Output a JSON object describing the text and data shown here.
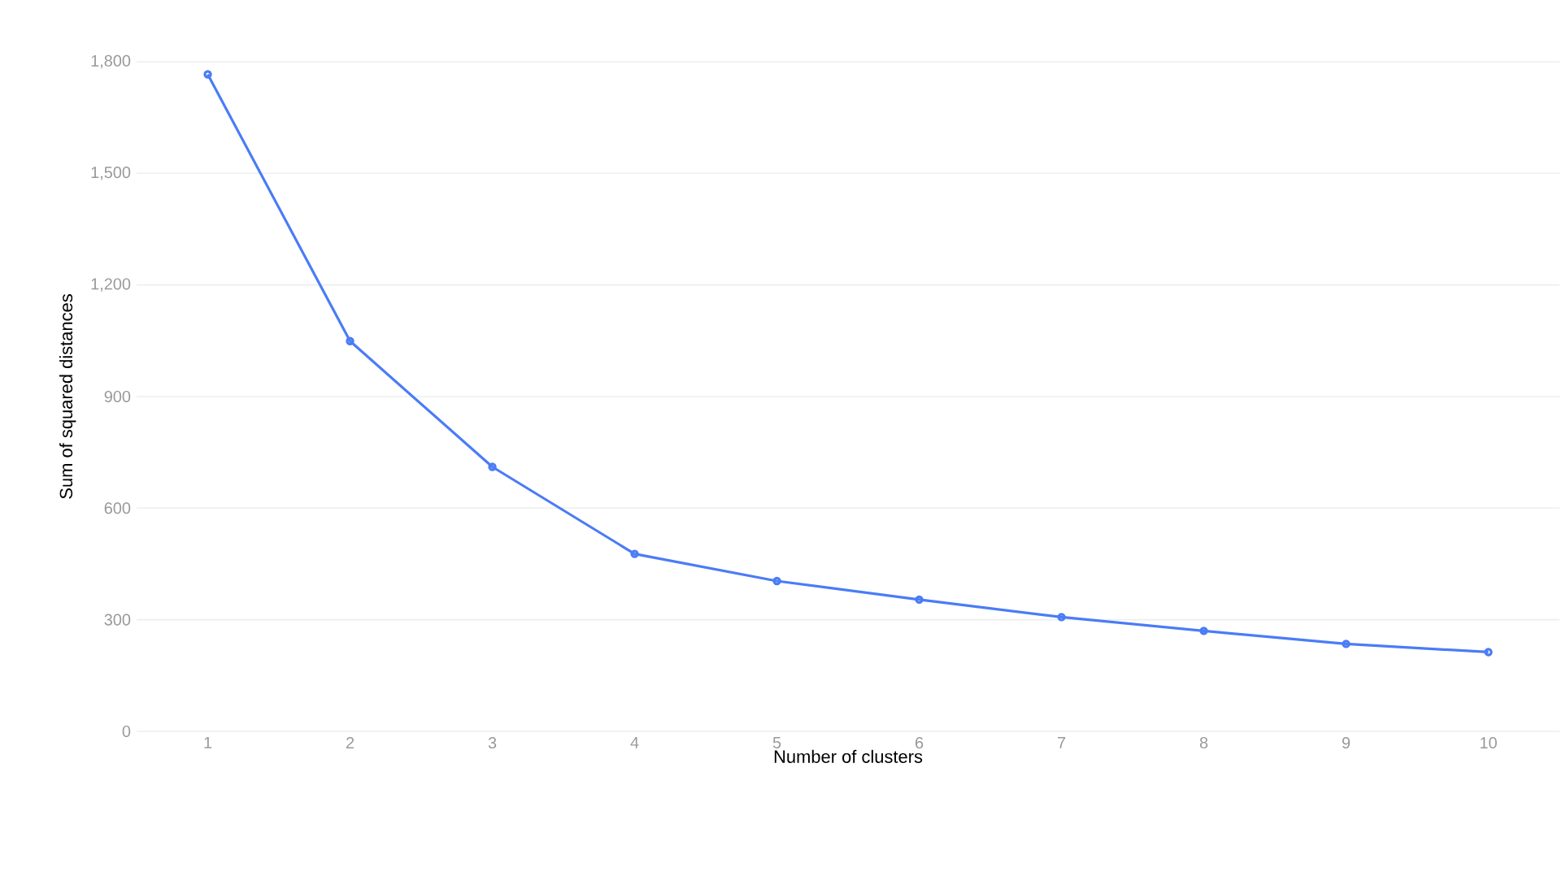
{
  "chart_data": {
    "type": "line",
    "xlabel": "Number of clusters",
    "ylabel": "Sum of squared distances",
    "categories": [
      "1",
      "2",
      "3",
      "4",
      "5",
      "6",
      "7",
      "8",
      "9",
      "10"
    ],
    "series": [
      {
        "color": "#4a7cf6",
        "values": [
          1766,
          1049,
          711,
          477,
          404,
          354,
          307,
          270,
          235,
          213
        ]
      }
    ],
    "ylim": [
      0,
      1800
    ],
    "yticks": [
      0,
      300,
      600,
      900,
      {
        "value": 1200,
        "label": "1,200"
      },
      {
        "value": 1500,
        "label": "1,500"
      },
      {
        "value": 1800,
        "label": "1,800"
      }
    ],
    "grid": "y",
    "marker": "circle",
    "line_style": "solid"
  }
}
